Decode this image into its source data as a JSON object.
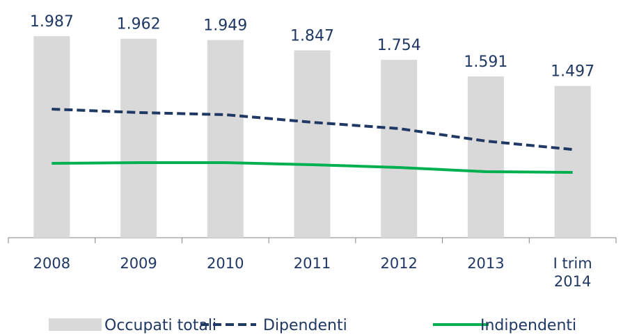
{
  "chart_data": {
    "type": "bar",
    "categories": [
      "2008",
      "2009",
      "2010",
      "2011",
      "2012",
      "2013",
      "I trim 2014"
    ],
    "ylim": [
      0,
      2344
    ],
    "series": [
      {
        "name": "Occupati totali",
        "type": "bar",
        "color": "#d9d9d9",
        "values": [
          1987,
          1962,
          1949,
          1847,
          1754,
          1591,
          1497
        ],
        "value_labels": [
          "1.987",
          "1.962",
          "1.949",
          "1.847",
          "1.754",
          "1.591",
          "1.497"
        ]
      },
      {
        "name": "Dipendenti",
        "type": "line",
        "dashed": true,
        "color": "#1f3864",
        "values": [
          1268,
          1234,
          1213,
          1138,
          1076,
          953,
          870
        ]
      },
      {
        "name": "Indipendenti",
        "type": "line",
        "dashed": false,
        "color": "#00b050",
        "values": [
          733,
          740,
          740,
          720,
          692,
          651,
          644
        ]
      }
    ],
    "legend": "bottom"
  }
}
